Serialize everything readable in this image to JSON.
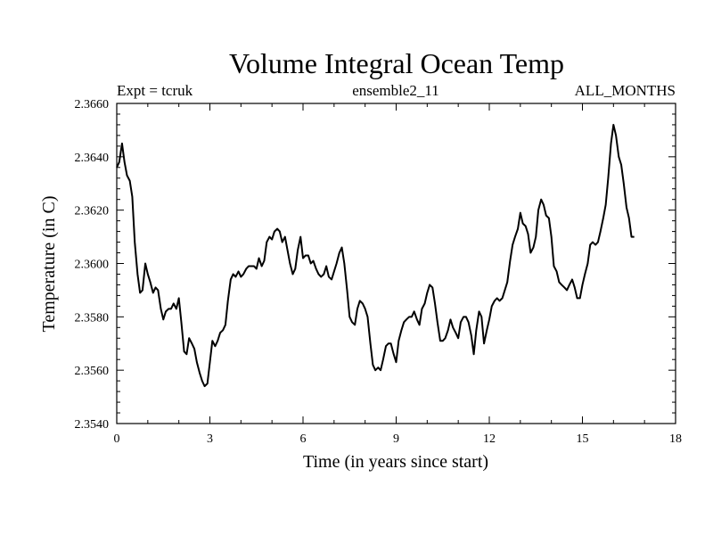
{
  "chart_data": {
    "type": "line",
    "title": "Volume Integral Ocean Temp",
    "subtitle_left": "Expt = tcruk",
    "subtitle_center": "ensemble2_11",
    "subtitle_right": "ALL_MONTHS",
    "xlabel": "Time (in years since start)",
    "ylabel": "Temperature (in C)",
    "xlim": [
      0,
      18
    ],
    "ylim": [
      2.354,
      2.366
    ],
    "xticks": [
      "0",
      "3",
      "6",
      "9",
      "12",
      "15",
      "18"
    ],
    "yticks": [
      "2.3540",
      "2.3560",
      "2.3580",
      "2.3600",
      "2.3620",
      "2.3640",
      "2.3660"
    ],
    "grid": false,
    "series": [
      {
        "name": "ensemble2_11",
        "color": "#000000",
        "x": [
          0,
          0.08,
          0.17,
          0.25,
          0.33,
          0.42,
          0.5,
          0.58,
          0.67,
          0.75,
          0.83,
          0.92,
          1.0,
          1.08,
          1.17,
          1.25,
          1.33,
          1.42,
          1.5,
          1.58,
          1.67,
          1.75,
          1.83,
          1.92,
          2.0,
          2.08,
          2.17,
          2.25,
          2.33,
          2.42,
          2.5,
          2.58,
          2.67,
          2.75,
          2.83,
          2.92,
          3.0,
          3.08,
          3.17,
          3.25,
          3.33,
          3.42,
          3.5,
          3.58,
          3.67,
          3.75,
          3.83,
          3.92,
          4.0,
          4.08,
          4.17,
          4.25,
          4.33,
          4.42,
          4.5,
          4.58,
          4.67,
          4.75,
          4.83,
          4.92,
          5.0,
          5.08,
          5.17,
          5.25,
          5.33,
          5.42,
          5.5,
          5.58,
          5.67,
          5.75,
          5.83,
          5.92,
          6.0,
          6.08,
          6.17,
          6.25,
          6.33,
          6.42,
          6.5,
          6.58,
          6.67,
          6.75,
          6.83,
          6.92,
          7.0,
          7.08,
          7.17,
          7.25,
          7.33,
          7.42,
          7.5,
          7.58,
          7.67,
          7.75,
          7.83,
          7.92,
          8.0,
          8.08,
          8.17,
          8.25,
          8.33,
          8.42,
          8.5,
          8.58,
          8.67,
          8.75,
          8.83,
          8.92,
          9.0,
          9.08,
          9.17,
          9.25,
          9.33,
          9.42,
          9.5,
          9.58,
          9.67,
          9.75,
          9.83,
          9.92,
          10.0,
          10.08,
          10.17,
          10.25,
          10.33,
          10.42,
          10.5,
          10.58,
          10.67,
          10.75,
          10.83,
          10.92,
          11.0,
          11.08,
          11.17,
          11.25,
          11.33,
          11.42,
          11.5,
          11.58,
          11.67,
          11.75,
          11.83,
          11.92,
          12.0,
          12.08,
          12.17,
          12.25,
          12.33,
          12.42,
          12.5,
          12.58,
          12.67,
          12.75,
          12.83,
          12.92,
          13.0,
          13.08,
          13.17,
          13.25,
          13.33,
          13.42,
          13.5,
          13.58,
          13.67,
          13.75,
          13.83,
          13.92,
          14.0,
          14.08,
          14.17,
          14.25,
          14.33,
          14.42,
          14.5,
          14.58,
          14.67,
          14.75,
          14.83,
          14.92,
          15.0,
          15.08,
          15.17,
          15.25,
          15.33,
          15.42,
          15.5,
          15.58,
          15.67,
          15.75,
          15.83,
          15.92,
          16.0,
          16.08,
          16.17,
          16.25,
          16.33,
          16.42,
          16.5,
          16.58,
          16.67
        ],
        "values": [
          2.3636,
          2.3638,
          2.3645,
          2.3638,
          2.3633,
          2.3631,
          2.3625,
          2.3608,
          2.3596,
          2.3589,
          2.359,
          2.36,
          2.3596,
          2.3593,
          2.3589,
          2.3591,
          2.359,
          2.3583,
          2.3579,
          2.3582,
          2.3583,
          2.3583,
          2.3585,
          2.3583,
          2.3587,
          2.3578,
          2.3567,
          2.3566,
          2.3572,
          2.357,
          2.3568,
          2.3563,
          2.3559,
          2.3556,
          2.3554,
          2.3555,
          2.3563,
          2.3571,
          2.3569,
          2.3571,
          2.3574,
          2.3575,
          2.3577,
          2.3586,
          2.3594,
          2.3596,
          2.3595,
          2.3597,
          2.3595,
          2.3596,
          2.3598,
          2.3599,
          2.3599,
          2.3599,
          2.3598,
          2.3602,
          2.3599,
          2.3601,
          2.3608,
          2.361,
          2.3609,
          2.3612,
          2.3613,
          2.3612,
          2.3608,
          2.361,
          2.3605,
          2.36,
          2.3596,
          2.3598,
          2.3605,
          2.361,
          2.3602,
          2.3603,
          2.3603,
          2.36,
          2.3601,
          2.3598,
          2.3596,
          2.3595,
          2.3596,
          2.3599,
          2.3595,
          2.3594,
          2.3597,
          2.36,
          2.3604,
          2.3606,
          2.36,
          2.359,
          2.358,
          2.3578,
          2.3577,
          2.3583,
          2.3586,
          2.3585,
          2.3583,
          2.358,
          2.357,
          2.3562,
          2.356,
          2.3561,
          2.356,
          2.3564,
          2.3569,
          2.357,
          2.357,
          2.3566,
          2.3563,
          2.3571,
          2.3575,
          2.3578,
          2.3579,
          2.358,
          2.358,
          2.3582,
          2.3579,
          2.3577,
          2.3583,
          2.3585,
          2.3589,
          2.3592,
          2.3591,
          2.3585,
          2.3578,
          2.3571,
          2.3571,
          2.3572,
          2.3575,
          2.3579,
          2.3576,
          2.3574,
          2.3572,
          2.3578,
          2.358,
          2.358,
          2.3578,
          2.3573,
          2.3566,
          2.3575,
          2.3582,
          2.358,
          2.357,
          2.3575,
          2.3579,
          2.3584,
          2.3586,
          2.3587,
          2.3586,
          2.3587,
          2.359,
          2.3593,
          2.3601,
          2.3607,
          2.361,
          2.3613,
          2.3619,
          2.3615,
          2.3614,
          2.3611,
          2.3604,
          2.3606,
          2.361,
          2.362,
          2.3624,
          2.3622,
          2.3618,
          2.3617,
          2.361,
          2.3599,
          2.3597,
          2.3593,
          2.3592,
          2.3591,
          2.359,
          2.3592,
          2.3594,
          2.3591,
          2.3587,
          2.3587,
          2.3592,
          2.3596,
          2.36,
          2.3607,
          2.3608,
          2.3607,
          2.3608,
          2.3612,
          2.3617,
          2.3622,
          2.3632,
          2.3645,
          2.3652,
          2.3648,
          2.364,
          2.3637,
          2.363,
          2.3621,
          2.3617,
          2.361,
          2.361
        ]
      }
    ]
  }
}
